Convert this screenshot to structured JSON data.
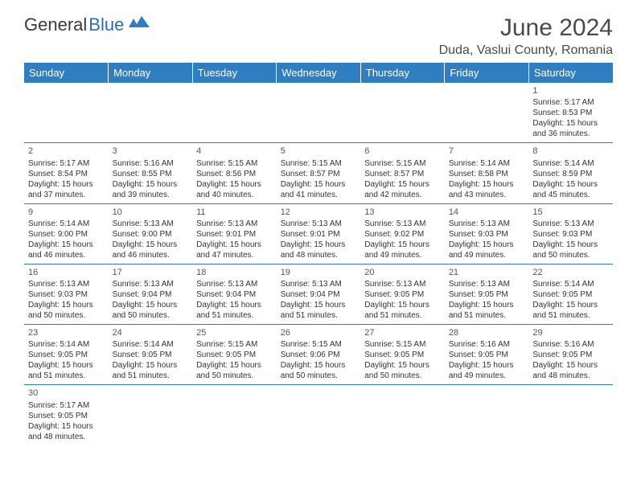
{
  "brand": {
    "part1": "General",
    "part2": "Blue"
  },
  "title": "June 2024",
  "location": "Duda, Vaslui County, Romania",
  "colors": {
    "header_bg": "#2f7ec1",
    "header_text": "#ffffff",
    "border": "#2f7ec1",
    "text": "#333333",
    "title_color": "#4a4a4a"
  },
  "day_headers": [
    "Sunday",
    "Monday",
    "Tuesday",
    "Wednesday",
    "Thursday",
    "Friday",
    "Saturday"
  ],
  "weeks": [
    [
      null,
      null,
      null,
      null,
      null,
      null,
      {
        "n": "1",
        "sr": "Sunrise: 5:17 AM",
        "ss": "Sunset: 8:53 PM",
        "d1": "Daylight: 15 hours",
        "d2": "and 36 minutes."
      }
    ],
    [
      {
        "n": "2",
        "sr": "Sunrise: 5:17 AM",
        "ss": "Sunset: 8:54 PM",
        "d1": "Daylight: 15 hours",
        "d2": "and 37 minutes."
      },
      {
        "n": "3",
        "sr": "Sunrise: 5:16 AM",
        "ss": "Sunset: 8:55 PM",
        "d1": "Daylight: 15 hours",
        "d2": "and 39 minutes."
      },
      {
        "n": "4",
        "sr": "Sunrise: 5:15 AM",
        "ss": "Sunset: 8:56 PM",
        "d1": "Daylight: 15 hours",
        "d2": "and 40 minutes."
      },
      {
        "n": "5",
        "sr": "Sunrise: 5:15 AM",
        "ss": "Sunset: 8:57 PM",
        "d1": "Daylight: 15 hours",
        "d2": "and 41 minutes."
      },
      {
        "n": "6",
        "sr": "Sunrise: 5:15 AM",
        "ss": "Sunset: 8:57 PM",
        "d1": "Daylight: 15 hours",
        "d2": "and 42 minutes."
      },
      {
        "n": "7",
        "sr": "Sunrise: 5:14 AM",
        "ss": "Sunset: 8:58 PM",
        "d1": "Daylight: 15 hours",
        "d2": "and 43 minutes."
      },
      {
        "n": "8",
        "sr": "Sunrise: 5:14 AM",
        "ss": "Sunset: 8:59 PM",
        "d1": "Daylight: 15 hours",
        "d2": "and 45 minutes."
      }
    ],
    [
      {
        "n": "9",
        "sr": "Sunrise: 5:14 AM",
        "ss": "Sunset: 9:00 PM",
        "d1": "Daylight: 15 hours",
        "d2": "and 46 minutes."
      },
      {
        "n": "10",
        "sr": "Sunrise: 5:13 AM",
        "ss": "Sunset: 9:00 PM",
        "d1": "Daylight: 15 hours",
        "d2": "and 46 minutes."
      },
      {
        "n": "11",
        "sr": "Sunrise: 5:13 AM",
        "ss": "Sunset: 9:01 PM",
        "d1": "Daylight: 15 hours",
        "d2": "and 47 minutes."
      },
      {
        "n": "12",
        "sr": "Sunrise: 5:13 AM",
        "ss": "Sunset: 9:01 PM",
        "d1": "Daylight: 15 hours",
        "d2": "and 48 minutes."
      },
      {
        "n": "13",
        "sr": "Sunrise: 5:13 AM",
        "ss": "Sunset: 9:02 PM",
        "d1": "Daylight: 15 hours",
        "d2": "and 49 minutes."
      },
      {
        "n": "14",
        "sr": "Sunrise: 5:13 AM",
        "ss": "Sunset: 9:03 PM",
        "d1": "Daylight: 15 hours",
        "d2": "and 49 minutes."
      },
      {
        "n": "15",
        "sr": "Sunrise: 5:13 AM",
        "ss": "Sunset: 9:03 PM",
        "d1": "Daylight: 15 hours",
        "d2": "and 50 minutes."
      }
    ],
    [
      {
        "n": "16",
        "sr": "Sunrise: 5:13 AM",
        "ss": "Sunset: 9:03 PM",
        "d1": "Daylight: 15 hours",
        "d2": "and 50 minutes."
      },
      {
        "n": "17",
        "sr": "Sunrise: 5:13 AM",
        "ss": "Sunset: 9:04 PM",
        "d1": "Daylight: 15 hours",
        "d2": "and 50 minutes."
      },
      {
        "n": "18",
        "sr": "Sunrise: 5:13 AM",
        "ss": "Sunset: 9:04 PM",
        "d1": "Daylight: 15 hours",
        "d2": "and 51 minutes."
      },
      {
        "n": "19",
        "sr": "Sunrise: 5:13 AM",
        "ss": "Sunset: 9:04 PM",
        "d1": "Daylight: 15 hours",
        "d2": "and 51 minutes."
      },
      {
        "n": "20",
        "sr": "Sunrise: 5:13 AM",
        "ss": "Sunset: 9:05 PM",
        "d1": "Daylight: 15 hours",
        "d2": "and 51 minutes."
      },
      {
        "n": "21",
        "sr": "Sunrise: 5:13 AM",
        "ss": "Sunset: 9:05 PM",
        "d1": "Daylight: 15 hours",
        "d2": "and 51 minutes."
      },
      {
        "n": "22",
        "sr": "Sunrise: 5:14 AM",
        "ss": "Sunset: 9:05 PM",
        "d1": "Daylight: 15 hours",
        "d2": "and 51 minutes."
      }
    ],
    [
      {
        "n": "23",
        "sr": "Sunrise: 5:14 AM",
        "ss": "Sunset: 9:05 PM",
        "d1": "Daylight: 15 hours",
        "d2": "and 51 minutes."
      },
      {
        "n": "24",
        "sr": "Sunrise: 5:14 AM",
        "ss": "Sunset: 9:05 PM",
        "d1": "Daylight: 15 hours",
        "d2": "and 51 minutes."
      },
      {
        "n": "25",
        "sr": "Sunrise: 5:15 AM",
        "ss": "Sunset: 9:05 PM",
        "d1": "Daylight: 15 hours",
        "d2": "and 50 minutes."
      },
      {
        "n": "26",
        "sr": "Sunrise: 5:15 AM",
        "ss": "Sunset: 9:06 PM",
        "d1": "Daylight: 15 hours",
        "d2": "and 50 minutes."
      },
      {
        "n": "27",
        "sr": "Sunrise: 5:15 AM",
        "ss": "Sunset: 9:05 PM",
        "d1": "Daylight: 15 hours",
        "d2": "and 50 minutes."
      },
      {
        "n": "28",
        "sr": "Sunrise: 5:16 AM",
        "ss": "Sunset: 9:05 PM",
        "d1": "Daylight: 15 hours",
        "d2": "and 49 minutes."
      },
      {
        "n": "29",
        "sr": "Sunrise: 5:16 AM",
        "ss": "Sunset: 9:05 PM",
        "d1": "Daylight: 15 hours",
        "d2": "and 48 minutes."
      }
    ],
    [
      {
        "n": "30",
        "sr": "Sunrise: 5:17 AM",
        "ss": "Sunset: 9:05 PM",
        "d1": "Daylight: 15 hours",
        "d2": "and 48 minutes."
      },
      null,
      null,
      null,
      null,
      null,
      null
    ]
  ]
}
